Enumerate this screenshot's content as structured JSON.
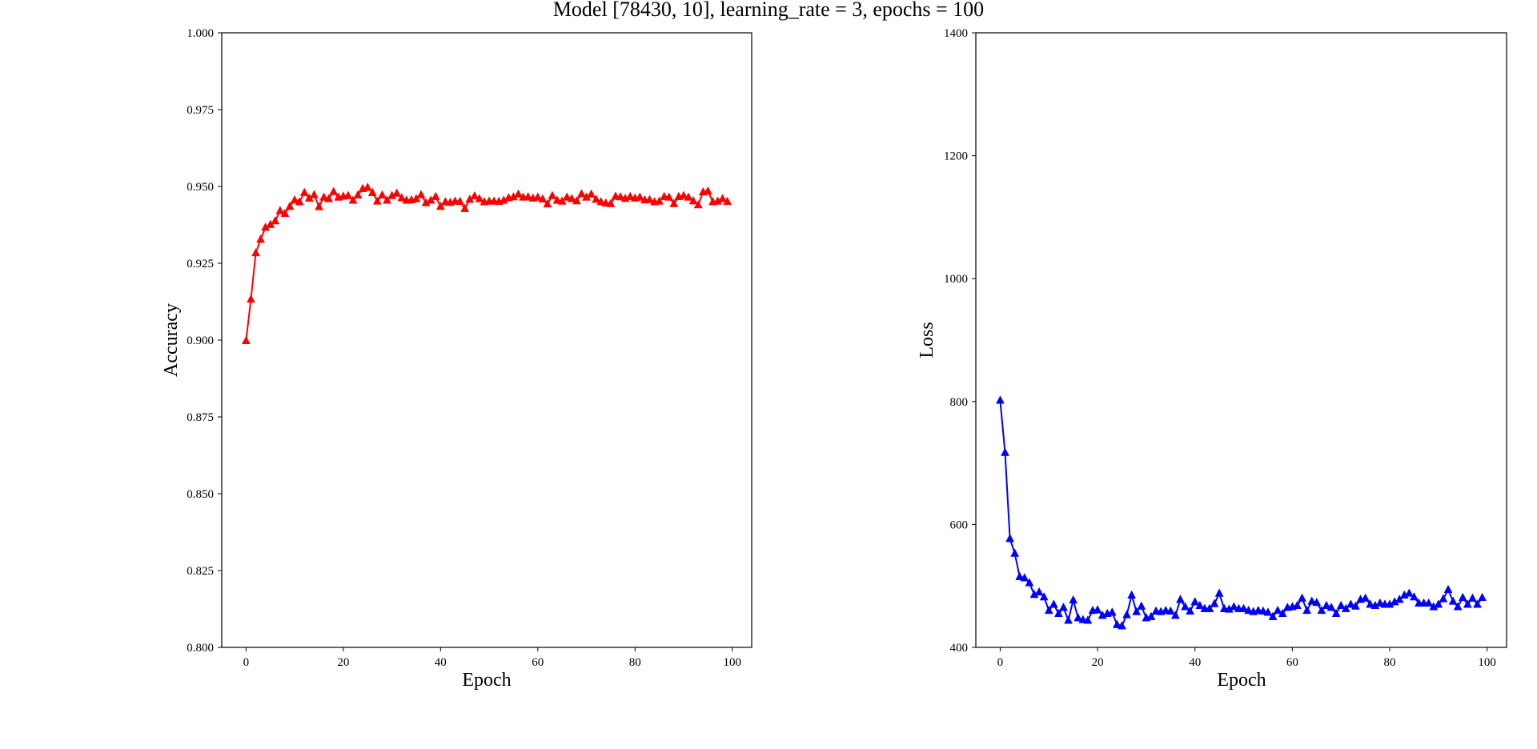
{
  "figure": {
    "title": "Model [78430, 10], learning_rate = 3, epochs = 100"
  },
  "chart_data": [
    {
      "type": "line",
      "xlabel": "Epoch",
      "ylabel": "Accuracy",
      "xlim": [
        -5,
        104
      ],
      "ylim": [
        0.8,
        1.0
      ],
      "xticks": [
        0,
        20,
        40,
        60,
        80,
        100
      ],
      "xtick_labels": [
        "0",
        "20",
        "40",
        "60",
        "80",
        "100"
      ],
      "yticks": [
        0.8,
        0.825,
        0.85,
        0.875,
        0.9,
        0.925,
        0.95,
        0.975,
        1.0
      ],
      "ytick_labels": [
        "0.800",
        "0.825",
        "0.850",
        "0.875",
        "0.900",
        "0.925",
        "0.950",
        "0.975",
        "1.000"
      ],
      "grid": false,
      "color": "#ff0000",
      "marker": "triangle",
      "x": [
        0,
        1,
        2,
        3,
        4,
        5,
        6,
        7,
        8,
        9,
        10,
        11,
        12,
        13,
        14,
        15,
        16,
        17,
        18,
        19,
        20,
        21,
        22,
        23,
        24,
        25,
        26,
        27,
        28,
        29,
        30,
        31,
        32,
        33,
        34,
        35,
        36,
        37,
        38,
        39,
        40,
        41,
        42,
        43,
        44,
        45,
        46,
        47,
        48,
        49,
        50,
        51,
        52,
        53,
        54,
        55,
        56,
        57,
        58,
        59,
        60,
        61,
        62,
        63,
        64,
        65,
        66,
        67,
        68,
        69,
        70,
        71,
        72,
        73,
        74,
        75,
        76,
        77,
        78,
        79,
        80,
        81,
        82,
        83,
        84,
        85,
        86,
        87,
        88,
        89,
        90,
        91,
        92,
        93,
        94,
        95,
        96,
        97,
        98,
        99
      ],
      "y": [
        0.8998,
        0.9133,
        0.9284,
        0.9328,
        0.9367,
        0.9376,
        0.9388,
        0.9421,
        0.9412,
        0.9435,
        0.9456,
        0.945,
        0.948,
        0.9462,
        0.9473,
        0.9434,
        0.9465,
        0.946,
        0.9483,
        0.9465,
        0.9468,
        0.947,
        0.9455,
        0.9472,
        0.9493,
        0.9497,
        0.948,
        0.9452,
        0.9472,
        0.9455,
        0.947,
        0.9478,
        0.9463,
        0.9455,
        0.9456,
        0.946,
        0.9473,
        0.9447,
        0.9455,
        0.9467,
        0.9435,
        0.945,
        0.9448,
        0.9452,
        0.9451,
        0.9428,
        0.9458,
        0.9469,
        0.946,
        0.945,
        0.9452,
        0.9452,
        0.9451,
        0.9455,
        0.9463,
        0.9466,
        0.9475,
        0.9465,
        0.9466,
        0.9462,
        0.9465,
        0.9459,
        0.9443,
        0.947,
        0.9455,
        0.9452,
        0.9465,
        0.946,
        0.9453,
        0.9476,
        0.9465,
        0.9475,
        0.9458,
        0.945,
        0.9446,
        0.9444,
        0.9468,
        0.9466,
        0.9461,
        0.9467,
        0.9462,
        0.9465,
        0.9456,
        0.9457,
        0.945,
        0.9452,
        0.9467,
        0.9465,
        0.9444,
        0.9467,
        0.947,
        0.9465,
        0.9453,
        0.944,
        0.9482,
        0.9485,
        0.945,
        0.9452,
        0.946,
        0.9451
      ]
    },
    {
      "type": "line",
      "xlabel": "Epoch",
      "ylabel": "Loss",
      "xlim": [
        -5,
        104
      ],
      "ylim": [
        400,
        1400
      ],
      "xticks": [
        0,
        20,
        40,
        60,
        80,
        100
      ],
      "xtick_labels": [
        "0",
        "20",
        "40",
        "60",
        "80",
        "100"
      ],
      "yticks": [
        400,
        600,
        800,
        1000,
        1200,
        1400
      ],
      "ytick_labels": [
        "400",
        "600",
        "800",
        "1000",
        "1200",
        "1400"
      ],
      "grid": false,
      "color": "#0000ff",
      "marker": "triangle",
      "x": [
        0,
        1,
        2,
        3,
        4,
        5,
        6,
        7,
        8,
        9,
        10,
        11,
        12,
        13,
        14,
        15,
        16,
        17,
        18,
        19,
        20,
        21,
        22,
        23,
        24,
        25,
        26,
        27,
        28,
        29,
        30,
        31,
        32,
        33,
        34,
        35,
        36,
        37,
        38,
        39,
        40,
        41,
        42,
        43,
        44,
        45,
        46,
        47,
        48,
        49,
        50,
        51,
        52,
        53,
        54,
        55,
        56,
        57,
        58,
        59,
        60,
        61,
        62,
        63,
        64,
        65,
        66,
        67,
        68,
        69,
        70,
        71,
        72,
        73,
        74,
        75,
        76,
        77,
        78,
        79,
        80,
        81,
        82,
        83,
        84,
        85,
        86,
        87,
        88,
        89,
        90,
        91,
        92,
        93,
        94,
        95,
        96,
        97,
        98,
        99
      ],
      "y": [
        802,
        717,
        577,
        553,
        515,
        513,
        505,
        486,
        490,
        482,
        460,
        470,
        455,
        465,
        444,
        477,
        448,
        445,
        444,
        460,
        461,
        452,
        455,
        457,
        437,
        435,
        453,
        485,
        458,
        467,
        448,
        450,
        459,
        458,
        460,
        459,
        452,
        478,
        466,
        459,
        474,
        468,
        463,
        463,
        471,
        488,
        463,
        462,
        466,
        463,
        463,
        460,
        458,
        460,
        459,
        457,
        450,
        460,
        455,
        465,
        466,
        468,
        480,
        460,
        475,
        473,
        460,
        468,
        465,
        455,
        468,
        463,
        470,
        467,
        478,
        480,
        470,
        468,
        472,
        470,
        470,
        474,
        478,
        485,
        488,
        482,
        472,
        472,
        472,
        466,
        470,
        479,
        494,
        475,
        466,
        481,
        470,
        480,
        470,
        481
      ]
    }
  ]
}
